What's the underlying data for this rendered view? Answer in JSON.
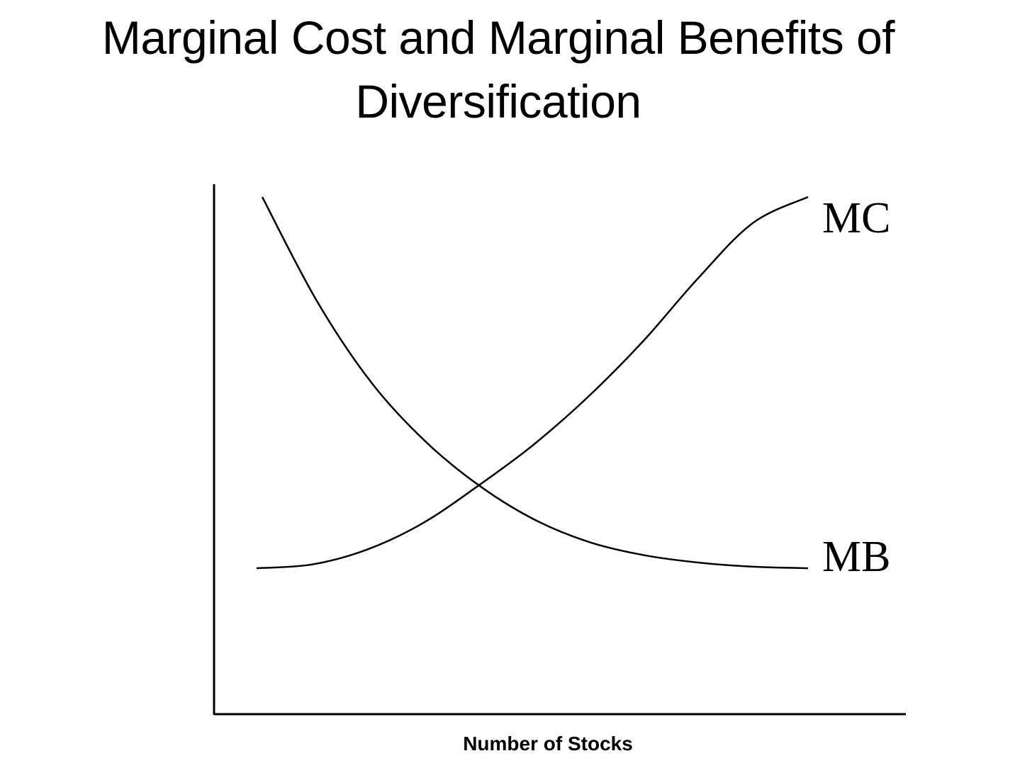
{
  "chart_data": {
    "type": "line",
    "title": "Marginal Cost and Marginal Benefits of Diversification",
    "xlabel": "Number of Stocks",
    "ylabel": "",
    "grid": false,
    "legend": "none",
    "series": [
      {
        "name": "MC",
        "x": [
          0,
          0.1,
          0.2,
          0.3,
          0.4,
          0.5,
          0.6,
          0.7,
          0.8,
          0.9,
          1.0
        ],
        "values": [
          0.0,
          0.01,
          0.05,
          0.12,
          0.22,
          0.33,
          0.46,
          0.61,
          0.78,
          0.93,
          1.0
        ]
      },
      {
        "name": "MB",
        "x": [
          0,
          0.1,
          0.2,
          0.3,
          0.4,
          0.5,
          0.6,
          0.7,
          0.8,
          0.9,
          1.0
        ],
        "values": [
          1.0,
          0.72,
          0.5,
          0.34,
          0.22,
          0.13,
          0.07,
          0.035,
          0.015,
          0.004,
          0.0
        ]
      }
    ],
    "colors": {
      "line": "#000000",
      "background": "#ffffff"
    }
  }
}
